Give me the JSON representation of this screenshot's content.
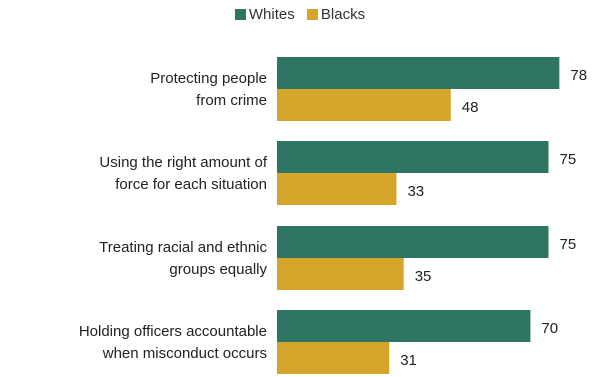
{
  "legend": {
    "whites": "Whites",
    "blacks": "Blacks"
  },
  "colors": {
    "whites": "#2e7563",
    "blacks": "#d6a62c"
  },
  "chart_data": {
    "type": "bar",
    "orientation": "horizontal",
    "categories": [
      [
        "Protecting people",
        "from crime"
      ],
      [
        "Using the right amount of",
        "force for each situation"
      ],
      [
        "Treating racial and ethnic",
        "groups equally"
      ],
      [
        "Holding officers accountable",
        "when misconduct occurs"
      ]
    ],
    "series": [
      {
        "name": "Whites",
        "values": [
          78,
          75,
          75,
          70
        ]
      },
      {
        "name": "Blacks",
        "values": [
          48,
          33,
          35,
          31
        ]
      }
    ],
    "xlim": [
      0,
      100
    ],
    "grid": false,
    "legend_position": "top-center",
    "title": "",
    "xlabel": "",
    "ylabel": ""
  }
}
